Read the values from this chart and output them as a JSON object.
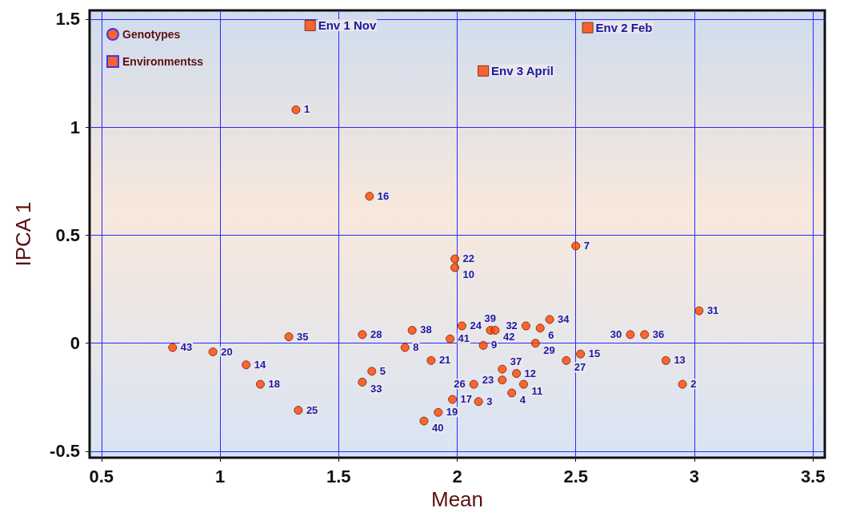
{
  "chart_data": {
    "type": "scatter",
    "xlabel": "Mean",
    "ylabel": "IPCA 1",
    "xlim": [
      0.45,
      3.55
    ],
    "ylim": [
      -0.53,
      1.54
    ],
    "xticks": [
      0.5,
      1,
      1.5,
      2,
      2.5,
      3,
      3.5
    ],
    "yticks": [
      -0.5,
      0,
      0.5,
      1,
      1.5
    ],
    "grid": true,
    "legend": "top left",
    "series": [
      {
        "name": "Genotypes",
        "marker": "circle",
        "color": "#ff4500",
        "x": [
          1.32,
          1.63,
          2.5,
          1.99,
          1.99,
          3.02,
          2.39,
          2.02,
          2.29,
          2.35,
          2.14,
          2.16,
          1.81,
          1.6,
          1.29,
          2.73,
          2.79,
          1.97,
          2.33,
          2.11,
          1.78,
          0.8,
          0.97,
          2.52,
          1.89,
          2.88,
          2.46,
          1.11,
          2.19,
          1.64,
          2.25,
          2.19,
          2.28,
          2.07,
          1.17,
          1.6,
          2.95,
          2.23,
          1.98,
          2.09,
          1.33,
          1.92,
          1.86
        ],
        "values": [
          1.08,
          0.68,
          0.45,
          0.39,
          0.35,
          0.15,
          0.11,
          0.08,
          0.08,
          0.07,
          0.06,
          0.06,
          0.06,
          0.04,
          0.03,
          0.04,
          0.04,
          0.02,
          0.0,
          -0.01,
          -0.02,
          -0.02,
          -0.04,
          -0.05,
          -0.08,
          -0.08,
          -0.08,
          -0.1,
          -0.12,
          -0.13,
          -0.14,
          -0.17,
          -0.19,
          -0.19,
          -0.19,
          -0.18,
          -0.19,
          -0.23,
          -0.26,
          -0.27,
          -0.31,
          -0.32,
          -0.36
        ]
      },
      {
        "name": "Environmentss",
        "marker": "square",
        "color": "#ff4500",
        "x": [
          1.38,
          2.55,
          2.11
        ],
        "values": [
          1.47,
          1.46,
          1.26
        ]
      }
    ],
    "annotations": [
      {
        "text": "1",
        "x": 1.32,
        "y": 1.08
      },
      {
        "text": "16",
        "x": 1.63,
        "y": 0.68
      },
      {
        "text": "7",
        "x": 2.5,
        "y": 0.45
      },
      {
        "text": "22",
        "x": 1.99,
        "y": 0.39
      },
      {
        "text": "10",
        "x": 1.99,
        "y": 0.35
      },
      {
        "text": "31",
        "x": 3.02,
        "y": 0.15
      },
      {
        "text": "34",
        "x": 2.39,
        "y": 0.11
      },
      {
        "text": "24",
        "x": 2.02,
        "y": 0.08
      },
      {
        "text": "32",
        "x": 2.29,
        "y": 0.08
      },
      {
        "text": "6",
        "x": 2.35,
        "y": 0.07
      },
      {
        "text": "39",
        "x": 2.14,
        "y": 0.06
      },
      {
        "text": "42",
        "x": 2.16,
        "y": 0.06
      },
      {
        "text": "38",
        "x": 1.81,
        "y": 0.06
      },
      {
        "text": "28",
        "x": 1.6,
        "y": 0.04
      },
      {
        "text": "35",
        "x": 1.29,
        "y": 0.03
      },
      {
        "text": "30",
        "x": 2.73,
        "y": 0.04
      },
      {
        "text": "36",
        "x": 2.79,
        "y": 0.04
      },
      {
        "text": "41",
        "x": 1.97,
        "y": 0.02
      },
      {
        "text": "29",
        "x": 2.33,
        "y": 0.0
      },
      {
        "text": "9",
        "x": 2.11,
        "y": -0.01
      },
      {
        "text": "8",
        "x": 1.78,
        "y": -0.02
      },
      {
        "text": "43",
        "x": 0.8,
        "y": -0.02
      },
      {
        "text": "20",
        "x": 0.97,
        "y": -0.04
      },
      {
        "text": "15",
        "x": 2.52,
        "y": -0.05
      },
      {
        "text": "21",
        "x": 1.89,
        "y": -0.08
      },
      {
        "text": "13",
        "x": 2.88,
        "y": -0.08
      },
      {
        "text": "27",
        "x": 2.46,
        "y": -0.08
      },
      {
        "text": "14",
        "x": 1.11,
        "y": -0.1
      },
      {
        "text": "37",
        "x": 2.19,
        "y": -0.12
      },
      {
        "text": "5",
        "x": 1.64,
        "y": -0.13
      },
      {
        "text": "12",
        "x": 2.25,
        "y": -0.14
      },
      {
        "text": "23",
        "x": 2.19,
        "y": -0.17
      },
      {
        "text": "11",
        "x": 2.28,
        "y": -0.19
      },
      {
        "text": "26",
        "x": 2.07,
        "y": -0.19
      },
      {
        "text": "18",
        "x": 1.17,
        "y": -0.19
      },
      {
        "text": "33",
        "x": 1.6,
        "y": -0.18
      },
      {
        "text": "2",
        "x": 2.95,
        "y": -0.19
      },
      {
        "text": "4",
        "x": 2.23,
        "y": -0.23
      },
      {
        "text": "17",
        "x": 1.98,
        "y": -0.26
      },
      {
        "text": "3",
        "x": 2.09,
        "y": -0.27
      },
      {
        "text": "25",
        "x": 1.33,
        "y": -0.31
      },
      {
        "text": "19",
        "x": 1.92,
        "y": -0.32
      },
      {
        "text": "40",
        "x": 1.86,
        "y": -0.36
      },
      {
        "text": "Env 1 Nov",
        "x": 1.38,
        "y": 1.47
      },
      {
        "text": "Env 2 Feb",
        "x": 2.55,
        "y": 1.46
      },
      {
        "text": "Env 3 April",
        "x": 2.11,
        "y": 1.26
      }
    ]
  }
}
